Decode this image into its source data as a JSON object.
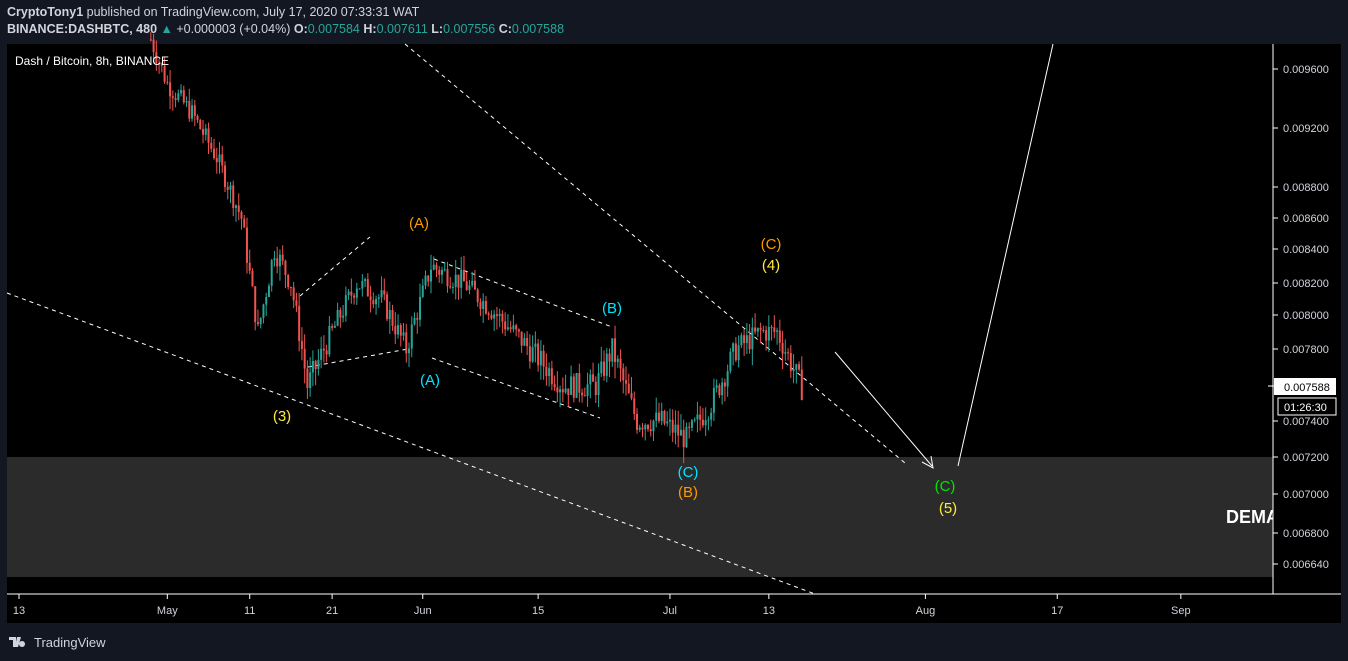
{
  "header": {
    "publisher": "CryptoTony1",
    "published_text": "published on TradingView.com, July 17, 2020 07:33:31 WAT",
    "symbol": "BINANCE:DASHBTC, 480",
    "change": "+0.000003 (+0.04%)",
    "o_label": "O:",
    "o_value": "0.007584",
    "h_label": "H:",
    "h_value": "0.007611",
    "l_label": "L:",
    "l_value": "0.007556",
    "c_label": "C:",
    "c_value": "0.007588"
  },
  "legend": {
    "title": "Dash / Bitcoin, 8h, BINANCE"
  },
  "price_axis": {
    "current_price": "0.007588",
    "countdown": "01:26:30"
  },
  "zone": {
    "label": "DEMA"
  },
  "footer": {
    "brand": "TradingView"
  },
  "colors": {
    "background": "#000000",
    "panel": "#131722",
    "up": "#26a69a",
    "down": "#ef5350",
    "zone": "#2b2b2b",
    "orange": "#ff9800",
    "cyan": "#00e5ff",
    "yellow": "#ffeb3b",
    "green": "#00e600"
  },
  "chart_data": {
    "type": "candlestick",
    "title": "Dash / Bitcoin, 8h, BINANCE",
    "y_ticks": [
      "0.009600",
      "0.009200",
      "0.008800",
      "0.008600",
      "0.008400",
      "0.008200",
      "0.008000",
      "0.007800",
      "0.007600",
      "0.007400",
      "0.007200",
      "0.007000",
      "0.006800",
      "0.006640"
    ],
    "x_ticks": [
      "13",
      "May",
      "11",
      "21",
      "Jun",
      "15",
      "Jul",
      "13",
      "Aug",
      "17",
      "Sep"
    ],
    "x_range": [
      "2020-04-13",
      "2020-09-30"
    ],
    "y_range": [
      0.0063,
      0.0098
    ],
    "close_path": [
      [
        "2020-04-29",
        0.0098
      ],
      [
        "2020-05-01",
        0.0095
      ],
      [
        "2020-05-04",
        0.0093
      ],
      [
        "2020-05-07",
        0.009
      ],
      [
        "2020-05-10",
        0.0086
      ],
      [
        "2020-05-12",
        0.0079
      ],
      [
        "2020-05-14",
        0.0084
      ],
      [
        "2020-05-16",
        0.0082
      ],
      [
        "2020-05-18",
        0.0076
      ],
      [
        "2020-05-21",
        0.0079
      ],
      [
        "2020-05-24",
        0.0082
      ],
      [
        "2020-05-27",
        0.0081
      ],
      [
        "2020-05-30",
        0.0078
      ],
      [
        "2020-06-02",
        0.0083
      ],
      [
        "2020-06-06",
        0.0082
      ],
      [
        "2020-06-10",
        0.008
      ],
      [
        "2020-06-14",
        0.0078
      ],
      [
        "2020-06-18",
        0.0076
      ],
      [
        "2020-06-22",
        0.0076
      ],
      [
        "2020-06-24",
        0.0078
      ],
      [
        "2020-06-27",
        0.0074
      ],
      [
        "2020-06-30",
        0.0074
      ],
      [
        "2020-07-03",
        0.0073
      ],
      [
        "2020-07-06",
        0.0075
      ],
      [
        "2020-07-09",
        0.0078
      ],
      [
        "2020-07-12",
        0.0079
      ],
      [
        "2020-07-14",
        0.0079
      ],
      [
        "2020-07-17",
        0.007588
      ]
    ],
    "annotations": [
      {
        "text": "(3)",
        "color": "yellow"
      },
      {
        "text": "(A)",
        "color": "orange"
      },
      {
        "text": "(A)",
        "color": "cyan"
      },
      {
        "text": "(B)",
        "color": "cyan"
      },
      {
        "text": "(C)",
        "color": "cyan"
      },
      {
        "text": "(B)",
        "color": "orange"
      },
      {
        "text": "(C)",
        "color": "orange"
      },
      {
        "text": "(4)",
        "color": "yellow"
      },
      {
        "text": "(C)",
        "color": "green"
      },
      {
        "text": "(5)",
        "color": "yellow"
      }
    ],
    "demand_zone": [
      0.00664,
      0.0072
    ]
  }
}
